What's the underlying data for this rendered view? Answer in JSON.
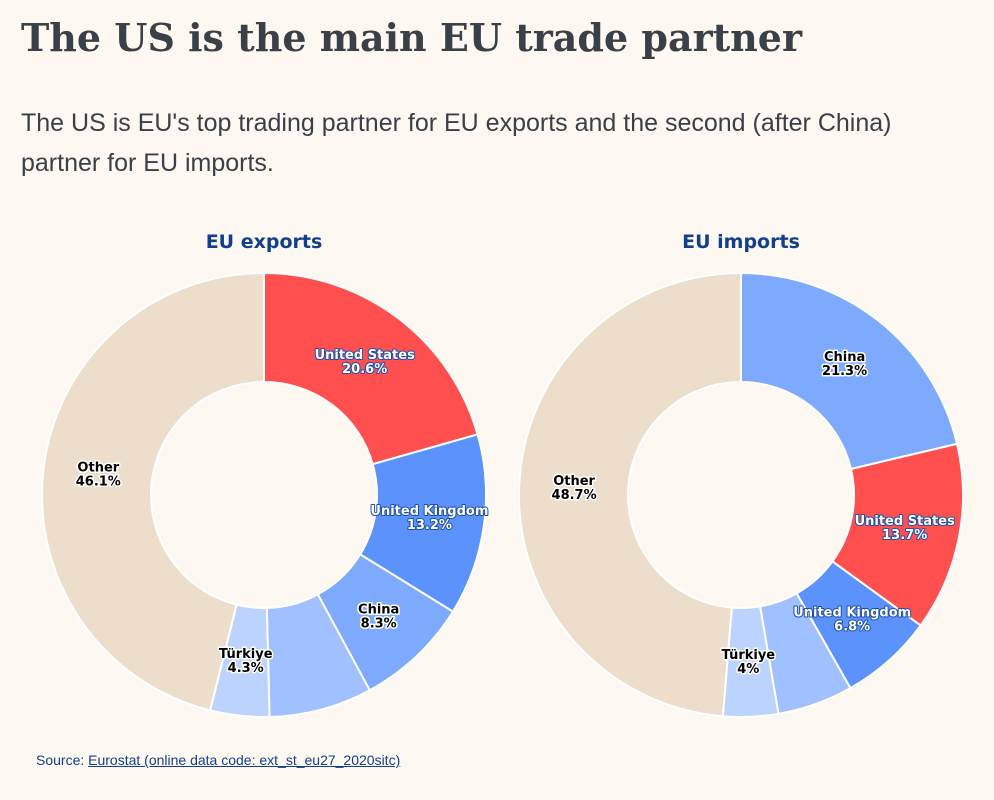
{
  "header": {
    "title": "The US is the main EU trade partner",
    "subtitle": "The US is EU's top trading partner for EU exports and the second (after China) partner for EU imports."
  },
  "colors": {
    "background": "#fdf8f1",
    "title_text": "#3a4047",
    "chart_title": "#123f8c",
    "us_red": "#ff4f4f",
    "uk_blue": "#5c92fb",
    "china_blue": "#7eaafe",
    "unlabeled_blue": "#a0c0ff",
    "turkiye_blue": "#bcd3fe",
    "other_beige": "#ecdecb"
  },
  "chart_data": [
    {
      "type": "pie",
      "title": "EU exports",
      "slices": [
        {
          "label": "United States",
          "value": 20.6,
          "display": "20.6%",
          "color": "#ff4f4f",
          "text_color": "#ffffff"
        },
        {
          "label": "United Kingdom",
          "value": 13.2,
          "display": "13.2%",
          "color": "#5c92fb",
          "text_color": "#ffffff"
        },
        {
          "label": "China",
          "value": 8.3,
          "display": "8.3%",
          "color": "#7eaafe",
          "text_color": "#000000"
        },
        {
          "label": "",
          "value": 7.5,
          "display": "",
          "color": "#a0c0ff",
          "text_color": "#000000"
        },
        {
          "label": "Türkiye",
          "value": 4.3,
          "display": "4.3%",
          "color": "#bcd3fe",
          "text_color": "#000000"
        },
        {
          "label": "Other",
          "value": 46.1,
          "display": "46.1%",
          "color": "#ecdecb",
          "text_color": "#000000"
        }
      ]
    },
    {
      "type": "pie",
      "title": "EU imports",
      "slices": [
        {
          "label": "China",
          "value": 21.3,
          "display": "21.3%",
          "color": "#7eaafe",
          "text_color": "#000000"
        },
        {
          "label": "United States",
          "value": 13.7,
          "display": "13.7%",
          "color": "#ff4f4f",
          "text_color": "#ffffff"
        },
        {
          "label": "United Kingdom",
          "value": 6.8,
          "display": "6.8%",
          "color": "#5c92fb",
          "text_color": "#ffffff"
        },
        {
          "label": "",
          "value": 5.5,
          "display": "",
          "color": "#a0c0ff",
          "text_color": "#000000"
        },
        {
          "label": "Türkiye",
          "value": 4.0,
          "display": "4%",
          "color": "#bcd3fe",
          "text_color": "#000000"
        },
        {
          "label": "Other",
          "value": 48.7,
          "display": "48.7%",
          "color": "#ecdecb",
          "text_color": "#000000"
        }
      ]
    }
  ],
  "footer": {
    "source_prefix": "Source: ",
    "source_link": "Eurostat (online data code: ext_st_eu27_2020sitc)"
  }
}
